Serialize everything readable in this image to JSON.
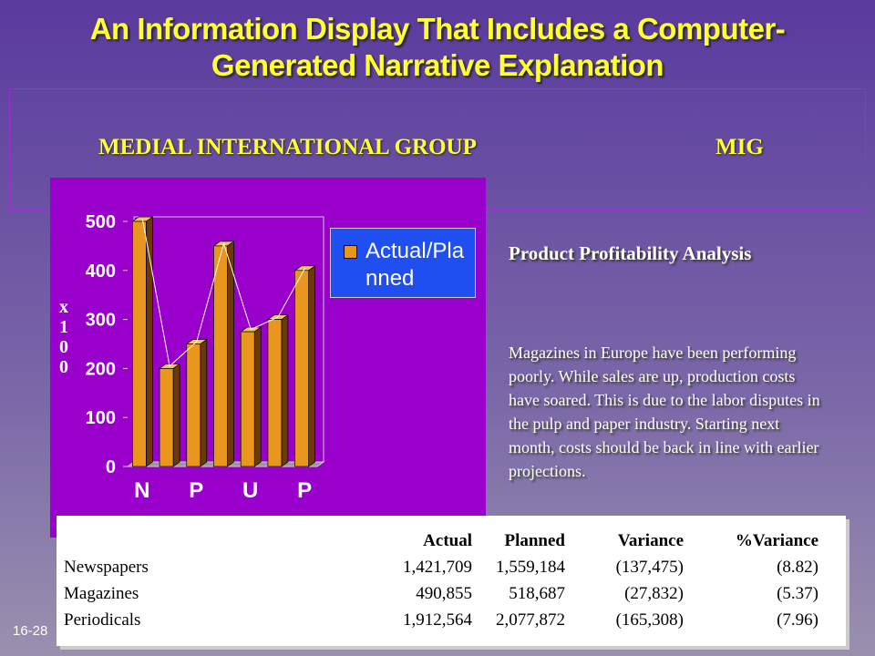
{
  "title": "An Information Display That Includes a Computer-Generated Narrative Explanation",
  "company": {
    "name": "MEDIAL INTERNATIONAL GROUP",
    "abbreviation": "MIG"
  },
  "chart_data": {
    "type": "bar",
    "categories": [
      "N",
      null,
      "P",
      null,
      "U",
      null,
      "P"
    ],
    "series": [
      {
        "name": "Actual/Planned",
        "color": "#e8961e",
        "values": [
          500,
          200,
          250,
          450,
          275,
          300,
          400
        ]
      }
    ],
    "y_label": "x100",
    "ylim": [
      0,
      500
    ],
    "yticks": [
      0,
      100,
      200,
      300,
      400,
      500
    ],
    "line": true,
    "legend": "right"
  },
  "analysis_title": "Product Profitability Analysis",
  "narrative": "Magazines in Europe have been performing poorly.  While sales are up, production costs have soared.  This is due to the labor disputes in the pulp and paper industry.  Starting next month, costs should be back in line with earlier projections.",
  "table": {
    "headers": [
      "Actual",
      "Planned",
      "Variance",
      "%Variance"
    ],
    "rows": [
      [
        "Newspapers",
        "1,421,709",
        "1,559,184",
        "(137,475)",
        "(8.82)"
      ],
      [
        "Magazines",
        "490,855",
        "518,687",
        "(27,832)",
        "(5.37)"
      ],
      [
        "Periodicals",
        "1,912,564",
        "2,077,872",
        "(165,308)",
        "(7.96)"
      ]
    ]
  },
  "slide_number": "16-28"
}
